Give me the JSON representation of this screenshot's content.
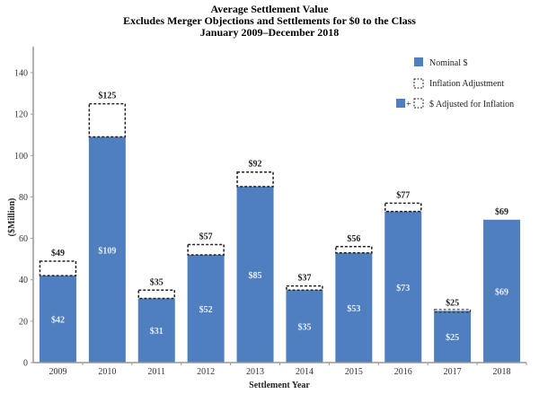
{
  "chart_data": {
    "type": "bar",
    "title": "Average Settlement Value",
    "subtitle": "Excludes Merger Objections and Settlements for $0 to the Class",
    "date_range": "January 2009–December 2018",
    "xlabel": "Settlement Year",
    "ylabel": "($Million)",
    "ylim": [
      0,
      150
    ],
    "yticks": [
      0,
      20,
      40,
      60,
      80,
      100,
      120,
      140
    ],
    "grid": false,
    "legend_position": "top-right",
    "categories": [
      "2009",
      "2010",
      "2011",
      "2012",
      "2013",
      "2014",
      "2015",
      "2016",
      "2017",
      "2018"
    ],
    "series": [
      {
        "name": "Nominal $",
        "values": [
          42,
          109,
          31,
          52,
          85,
          35,
          53,
          73,
          25,
          69
        ],
        "labels": [
          "$42",
          "$109",
          "$31",
          "$52",
          "$85",
          "$35",
          "$53",
          "$73",
          "$25",
          "$69"
        ]
      },
      {
        "name": "$ Adjusted for Inflation",
        "values": [
          49,
          125,
          35,
          57,
          92,
          37,
          56,
          77,
          25,
          69
        ],
        "labels": [
          "$49",
          "$125",
          "$35",
          "$57",
          "$92",
          "$37",
          "$56",
          "$77",
          "$25",
          "$69"
        ]
      }
    ],
    "legend": [
      {
        "name": "Nominal $",
        "symbol": "solid-blue"
      },
      {
        "name": "Inflation Adjustment",
        "symbol": "dashed-box"
      },
      {
        "name": "$ Adjusted for Inflation",
        "symbol": "solid-plus-dashed",
        "plus": "+"
      }
    ],
    "colors": {
      "nominal": "#4f7fbf",
      "adjustment_border": "#222222"
    }
  }
}
